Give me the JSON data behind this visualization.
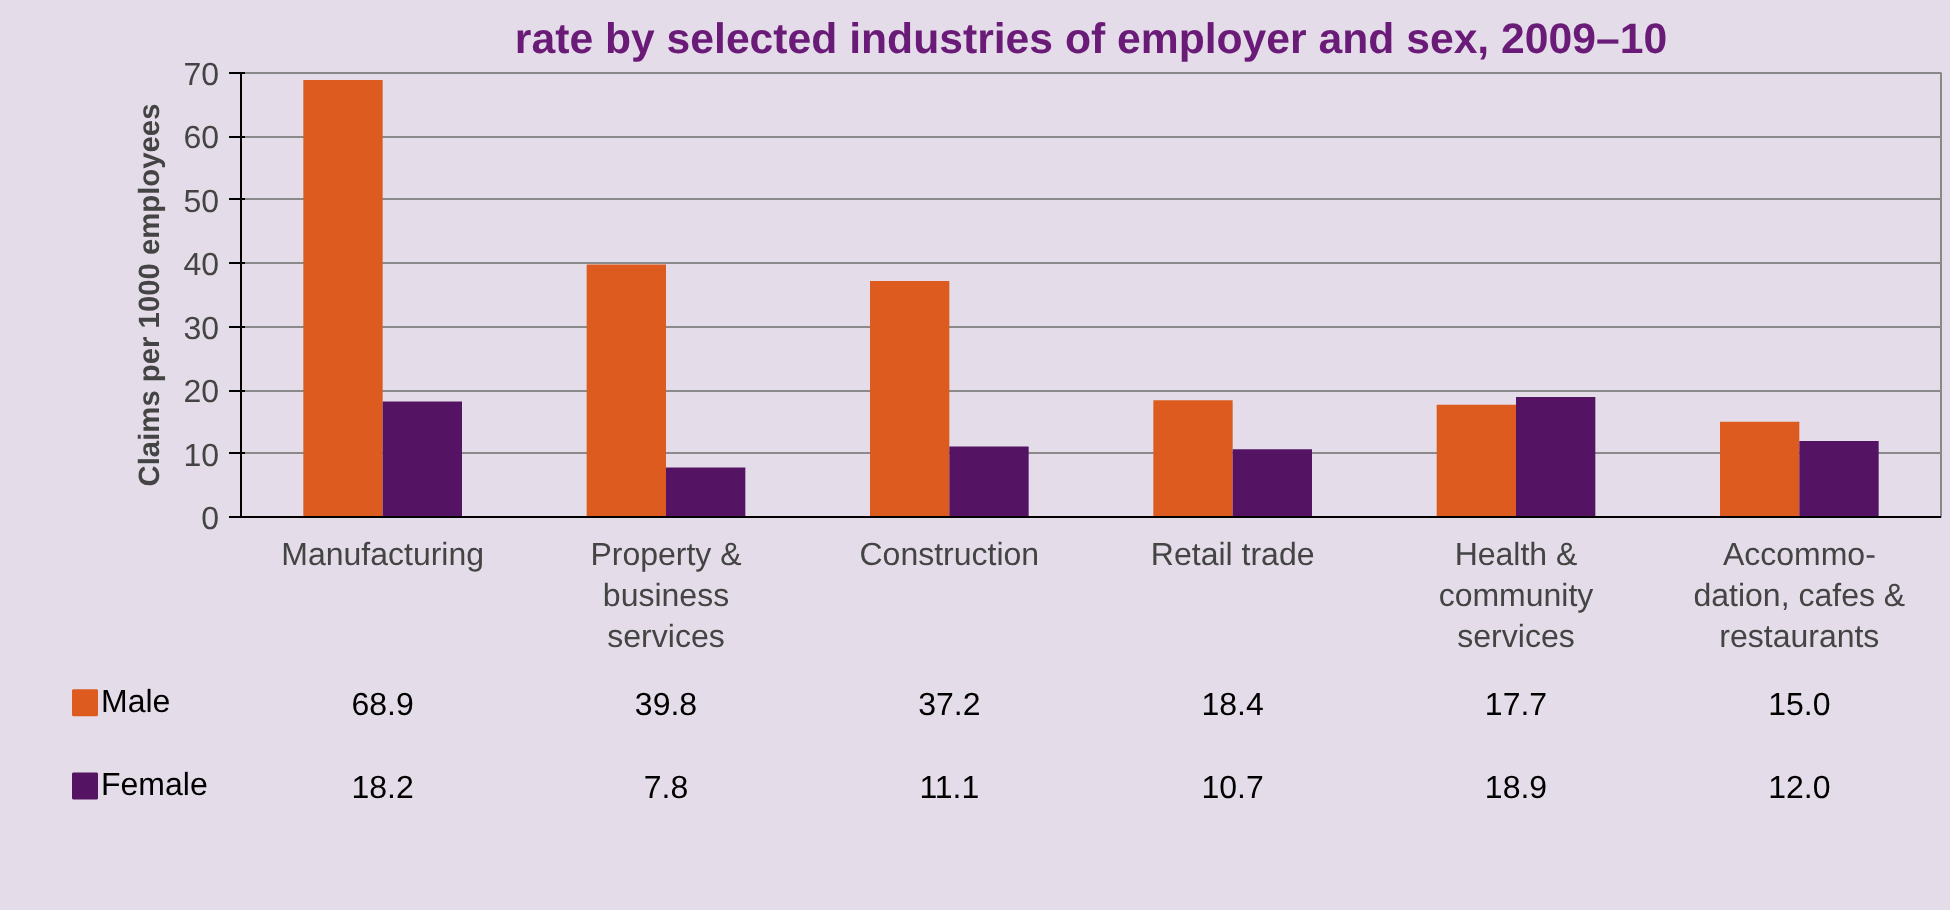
{
  "chart_data": {
    "type": "bar",
    "title": "rate by selected industries of employer and sex, 2009–10",
    "ylabel": "Claims per 1000 employees",
    "categories": [
      "Manufacturing",
      "Property &\nbusiness\nservices",
      "Construction",
      "Retail trade",
      "Health &\ncommunity\nservices",
      "Accommo-\ndation, cafes &\nrestaurants"
    ],
    "series": [
      {
        "name": "Male",
        "color": "#dd5b1f",
        "values": [
          68.9,
          39.8,
          37.2,
          18.4,
          17.7,
          15.0
        ],
        "value_labels": [
          "68.9",
          "39.8",
          "37.2",
          "18.4",
          "17.7",
          "15.0"
        ]
      },
      {
        "name": "Female",
        "color": "#541463",
        "values": [
          18.2,
          7.8,
          11.1,
          10.7,
          18.9,
          12.0
        ],
        "value_labels": [
          "18.2",
          "7.8",
          "11.1",
          "10.7",
          "18.9",
          "12.0"
        ]
      }
    ],
    "ylim": [
      0,
      70
    ],
    "yticks": [
      0,
      10,
      20,
      30,
      40,
      50,
      60,
      70
    ],
    "grid": "y",
    "legend": "bottom"
  }
}
